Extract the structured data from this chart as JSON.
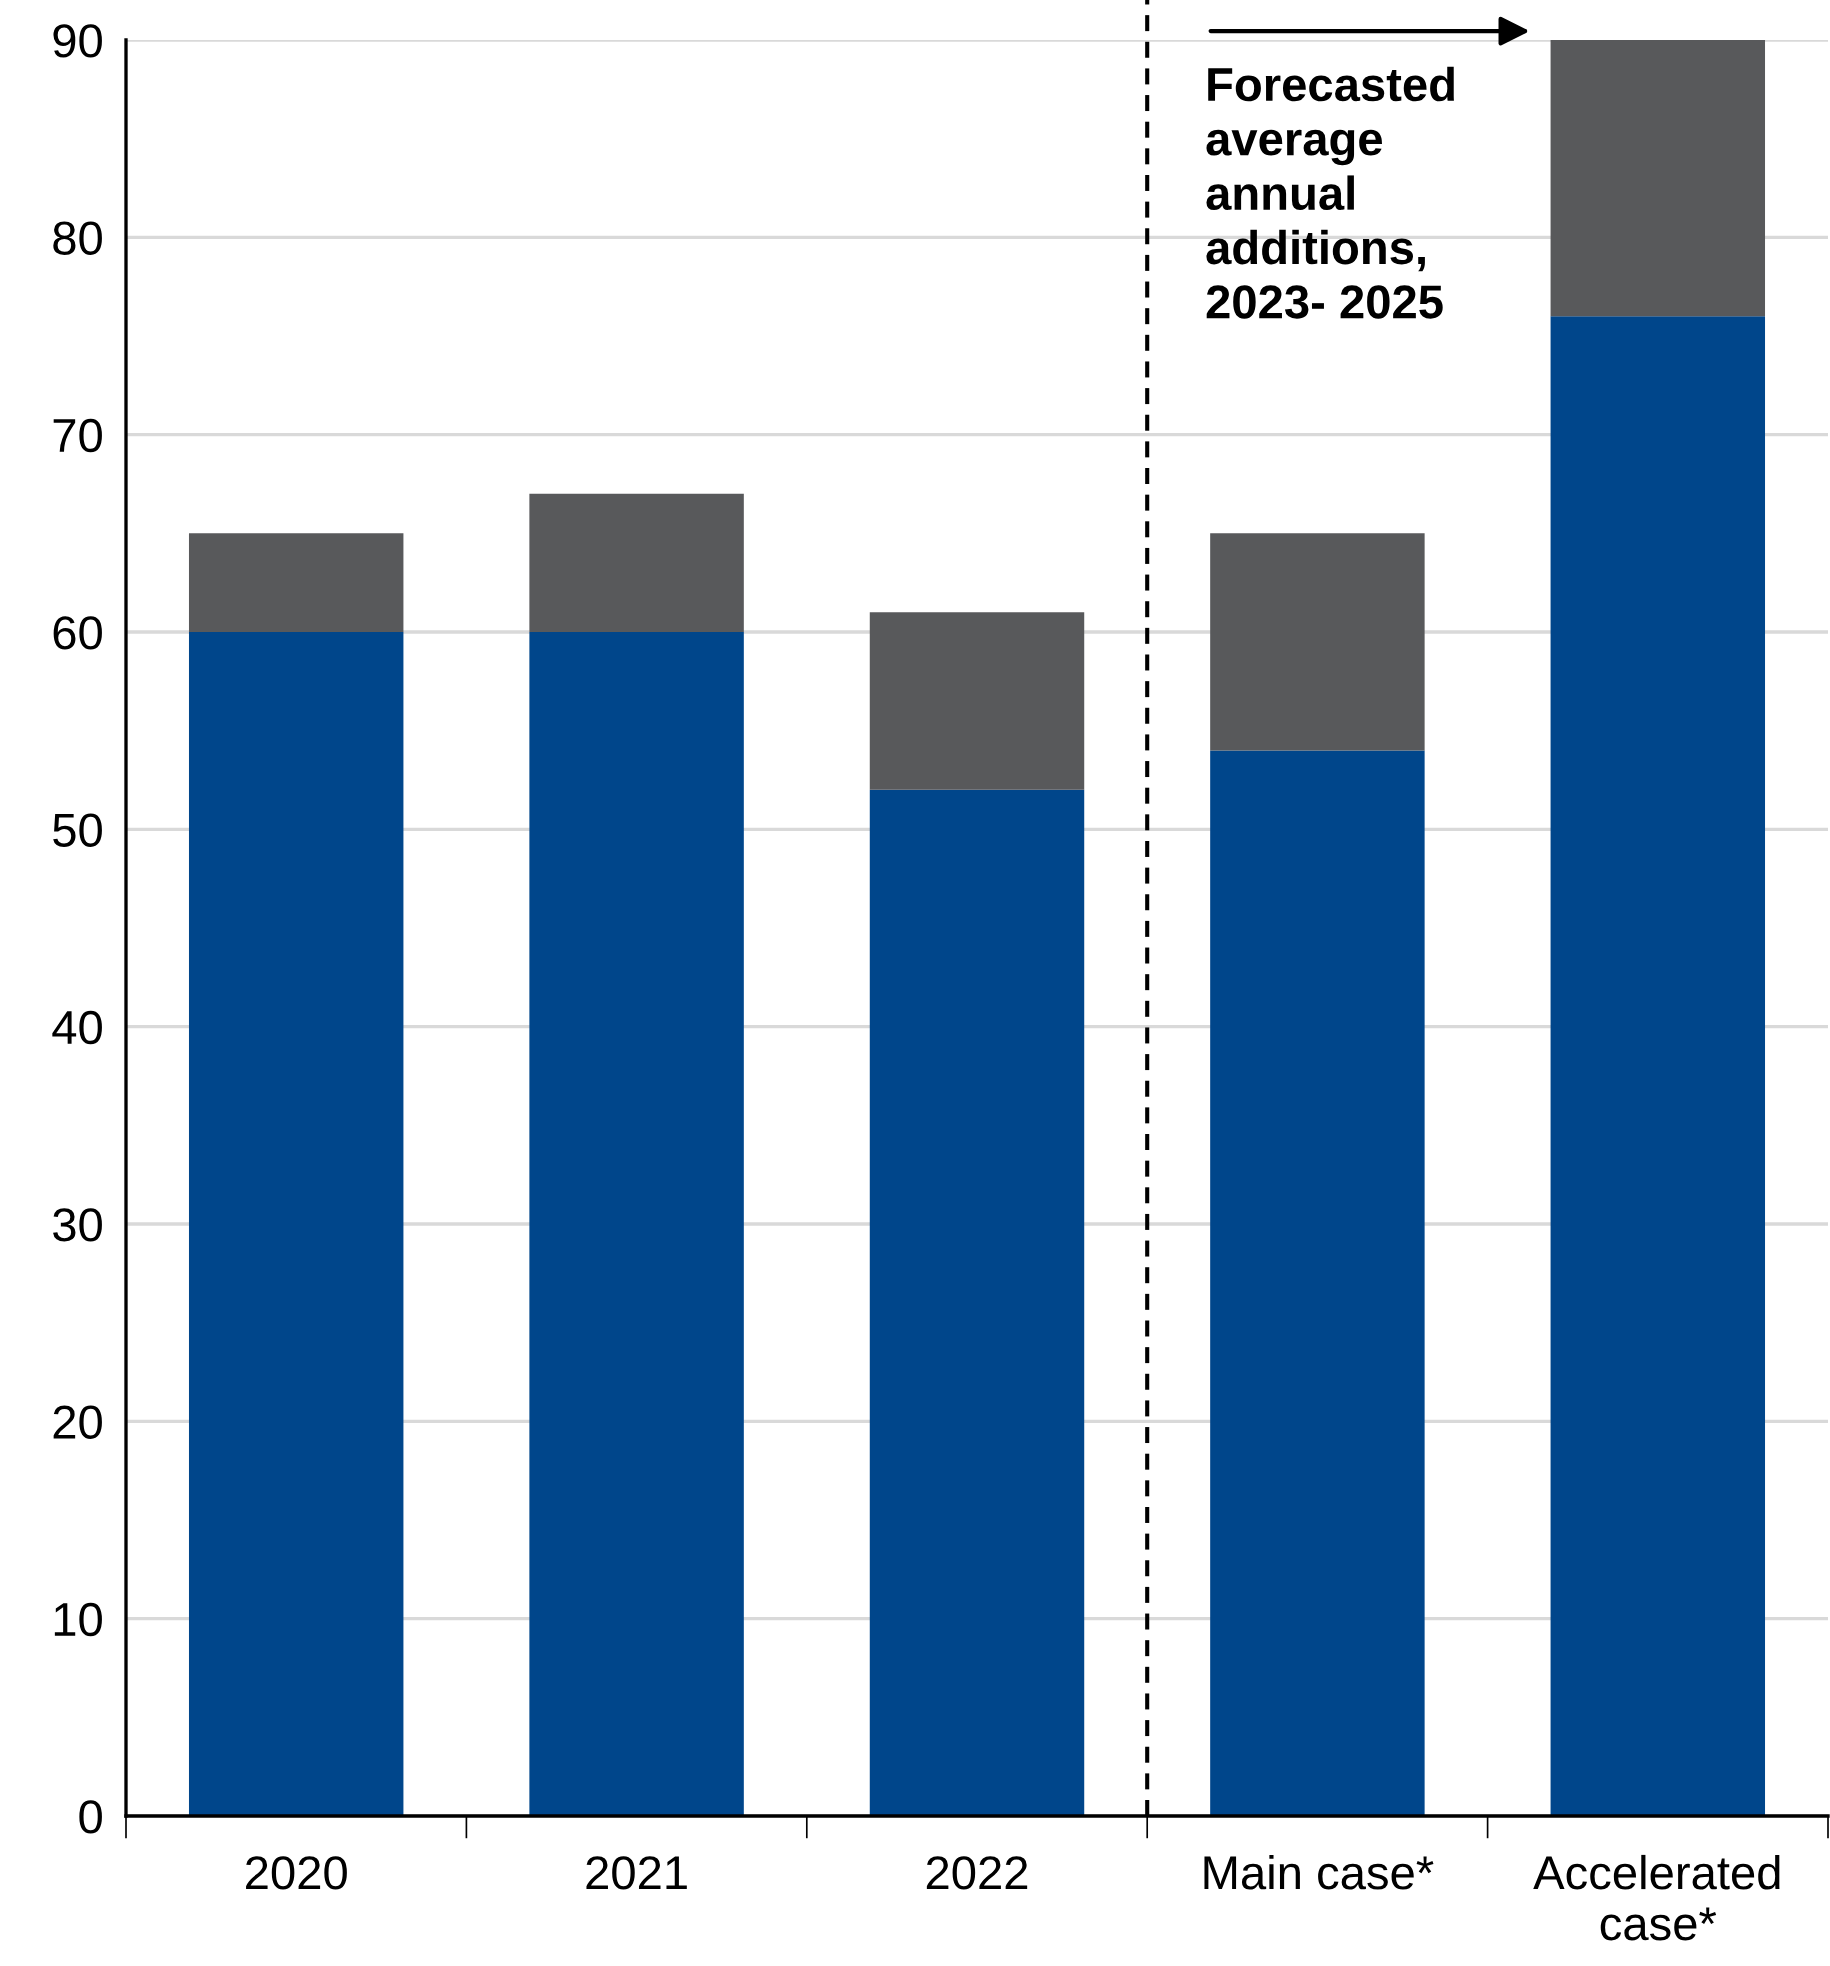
{
  "chart_data": {
    "type": "bar",
    "stacked": true,
    "categories": [
      "2020",
      "2021",
      "2022",
      "Main case*",
      "Accelerated\ncase*"
    ],
    "series": [
      {
        "color": "#00468b",
        "values": [
          60,
          60,
          52,
          54,
          76
        ]
      },
      {
        "color": "#58595b",
        "values": [
          5,
          7,
          9,
          11,
          14
        ]
      }
    ],
    "ylim": [
      0,
      90
    ],
    "yticks": [
      0,
      10,
      20,
      30,
      40,
      50,
      60,
      70,
      80,
      90
    ],
    "grid": "y",
    "annotations": [
      "Forecasted\naverage\nannual\nadditions,\n2023- 2025"
    ]
  }
}
